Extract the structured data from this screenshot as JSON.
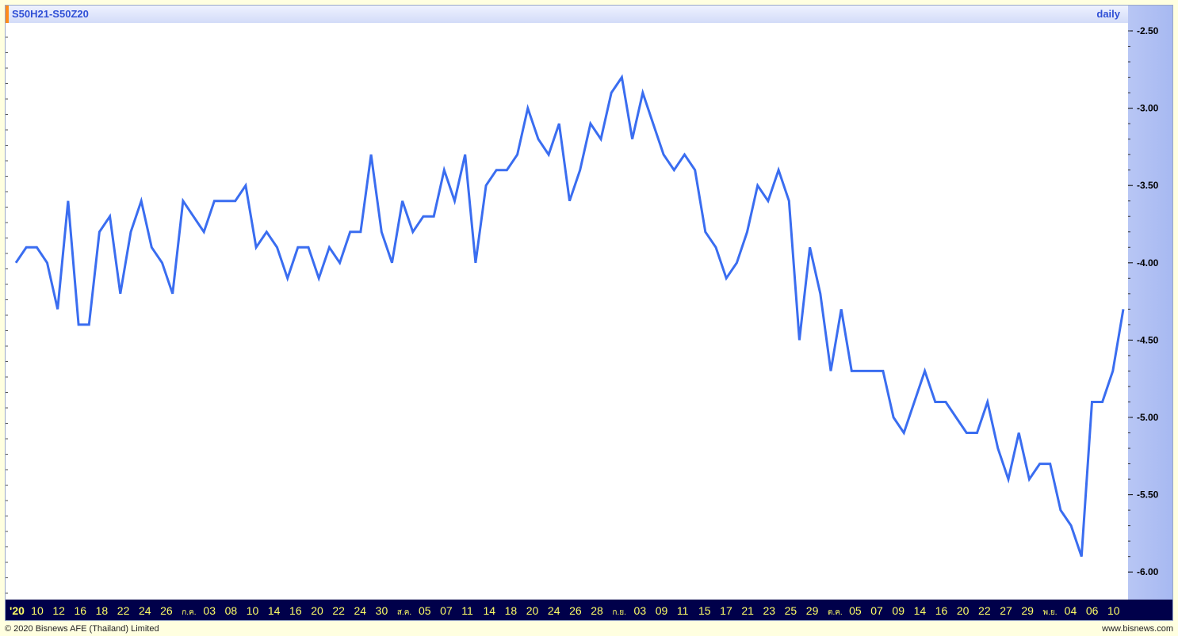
{
  "header": {
    "title": "S50H21-S50Z20",
    "interval": "daily"
  },
  "footer": {
    "copyright": "© 2020 Bisnews AFE (Thailand) Limited",
    "site": "www.bisnews.com"
  },
  "colors": {
    "line": "#3a6df0",
    "axis_text": "#ffff66",
    "y_panel": "#a9bbf2",
    "x_bar": "#00004a",
    "page_bg": "#ffffe0"
  },
  "chart_data": {
    "type": "line",
    "title": "S50H21-S50Z20",
    "xlabel": "",
    "ylabel": "",
    "ylim": [
      -6.25,
      -2.45
    ],
    "y_ticks": [
      -2.5,
      -3.0,
      -3.5,
      -4.0,
      -4.5,
      -5.0,
      -5.5,
      -6.0
    ],
    "y_tick_labels": [
      "-2.50",
      "-3.00",
      "-3.50",
      "-4.00",
      "-4.50",
      "-5.00",
      "-5.50",
      "-6.00"
    ],
    "x_tick_labels": [
      "'20",
      "10",
      "12",
      "16",
      "18",
      "22",
      "24",
      "26",
      "ก.ค.",
      "03",
      "08",
      "10",
      "14",
      "16",
      "20",
      "22",
      "24",
      "30",
      "ส.ค.",
      "05",
      "07",
      "11",
      "14",
      "18",
      "20",
      "24",
      "26",
      "28",
      "ก.ย.",
      "03",
      "09",
      "11",
      "15",
      "17",
      "21",
      "23",
      "25",
      "29",
      "ต.ค.",
      "05",
      "07",
      "09",
      "14",
      "16",
      "20",
      "22",
      "27",
      "29",
      "พ.ย.",
      "04",
      "06",
      "10"
    ],
    "grid": false,
    "series": [
      {
        "values": [
          -4.0,
          -3.9,
          -3.9,
          -4.0,
          -4.3,
          -3.6,
          -4.4,
          -4.4,
          -3.8,
          -3.7,
          -4.2,
          -3.8,
          -3.6,
          -3.9,
          -4.0,
          -4.2,
          -3.6,
          -3.7,
          -3.8,
          -3.6,
          -3.6,
          -3.6,
          -3.5,
          -3.9,
          -3.8,
          -3.9,
          -4.1,
          -3.9,
          -3.9,
          -4.1,
          -3.9,
          -4.0,
          -3.8,
          -3.8,
          -3.3,
          -3.8,
          -4.0,
          -3.6,
          -3.8,
          -3.7,
          -3.7,
          -3.4,
          -3.6,
          -3.3,
          -4.0,
          -3.5,
          -3.4,
          -3.4,
          -3.3,
          -3.0,
          -3.2,
          -3.3,
          -3.1,
          -3.6,
          -3.4,
          -3.1,
          -3.2,
          -2.9,
          -2.8,
          -3.2,
          -2.9,
          -3.1,
          -3.3,
          -3.4,
          -3.3,
          -3.4,
          -3.8,
          -3.9,
          -4.1,
          -4.0,
          -3.8,
          -3.5,
          -3.6,
          -3.4,
          -3.6,
          -4.5,
          -3.9,
          -4.2,
          -4.7,
          -4.3,
          -4.7,
          -4.7,
          -4.7,
          -4.7,
          -5.0,
          -5.1,
          -4.9,
          -4.7,
          -4.9,
          -4.9,
          -5.0,
          -5.1,
          -5.1,
          -4.9,
          -5.2,
          -5.4,
          -5.1,
          -5.4,
          -5.3,
          -5.3,
          -5.6,
          -5.7,
          -5.9,
          -4.9,
          -4.9,
          -4.7,
          -4.3
        ]
      }
    ]
  }
}
